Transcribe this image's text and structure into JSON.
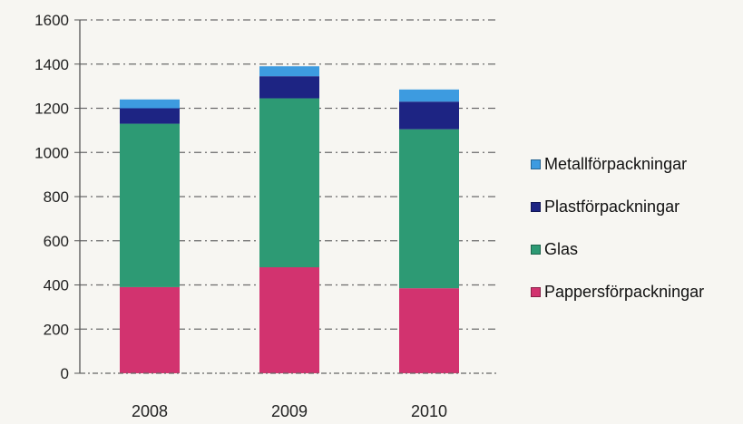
{
  "chart_data": {
    "type": "bar",
    "stacked": true,
    "title": "",
    "xlabel": "",
    "ylabel": "",
    "categories": [
      "2008",
      "2009",
      "2010"
    ],
    "ylim": [
      0,
      1600
    ],
    "yticks": [
      "0",
      "200",
      "400",
      "600",
      "800",
      "1000",
      "1200",
      "1400",
      "1600"
    ],
    "grid": true,
    "legend_position": "right",
    "series": [
      {
        "name": "Pappersförpackningar",
        "color": "#d2336f",
        "values": [
          390,
          480,
          385
        ]
      },
      {
        "name": "Glas",
        "color": "#2d9a74",
        "values": [
          740,
          765,
          720
        ]
      },
      {
        "name": "Plastförpackningar",
        "color": "#1d2483",
        "values": [
          70,
          100,
          125
        ]
      },
      {
        "name": "Metallförpackningar",
        "color": "#3d9be0",
        "values": [
          40,
          45,
          55
        ]
      }
    ],
    "legend_order": [
      "Metallförpackningar",
      "Plastförpackningar",
      "Glas",
      "Pappersförpackningar"
    ]
  }
}
